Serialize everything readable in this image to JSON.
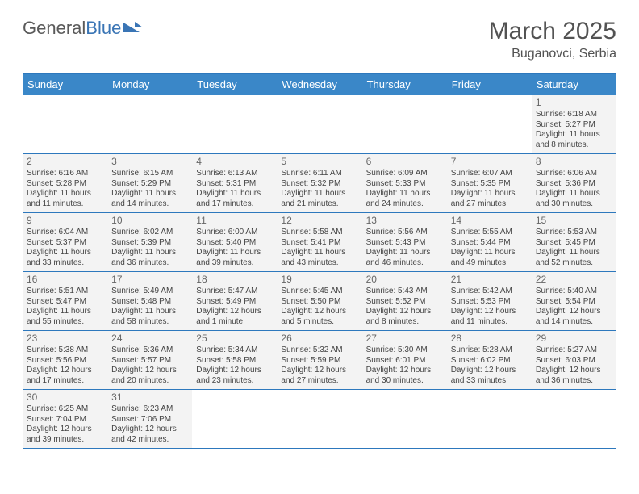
{
  "brand": {
    "part1": "General",
    "part2": "Blue"
  },
  "title": "March 2025",
  "location": "Buganovci, Serbia",
  "colors": {
    "headerBg": "#3a87c8",
    "headerText": "#ffffff",
    "borderBlue": "#2d78bd",
    "cellBg": "#f3f3f3",
    "emptyBg": "#ffffff",
    "textGray": "#525252"
  },
  "dayNames": [
    "Sunday",
    "Monday",
    "Tuesday",
    "Wednesday",
    "Thursday",
    "Friday",
    "Saturday"
  ],
  "weeks": [
    [
      null,
      null,
      null,
      null,
      null,
      null,
      {
        "n": "1",
        "sr": "Sunrise: 6:18 AM",
        "ss": "Sunset: 5:27 PM",
        "dl": "Daylight: 11 hours and 8 minutes."
      }
    ],
    [
      {
        "n": "2",
        "sr": "Sunrise: 6:16 AM",
        "ss": "Sunset: 5:28 PM",
        "dl": "Daylight: 11 hours and 11 minutes."
      },
      {
        "n": "3",
        "sr": "Sunrise: 6:15 AM",
        "ss": "Sunset: 5:29 PM",
        "dl": "Daylight: 11 hours and 14 minutes."
      },
      {
        "n": "4",
        "sr": "Sunrise: 6:13 AM",
        "ss": "Sunset: 5:31 PM",
        "dl": "Daylight: 11 hours and 17 minutes."
      },
      {
        "n": "5",
        "sr": "Sunrise: 6:11 AM",
        "ss": "Sunset: 5:32 PM",
        "dl": "Daylight: 11 hours and 21 minutes."
      },
      {
        "n": "6",
        "sr": "Sunrise: 6:09 AM",
        "ss": "Sunset: 5:33 PM",
        "dl": "Daylight: 11 hours and 24 minutes."
      },
      {
        "n": "7",
        "sr": "Sunrise: 6:07 AM",
        "ss": "Sunset: 5:35 PM",
        "dl": "Daylight: 11 hours and 27 minutes."
      },
      {
        "n": "8",
        "sr": "Sunrise: 6:06 AM",
        "ss": "Sunset: 5:36 PM",
        "dl": "Daylight: 11 hours and 30 minutes."
      }
    ],
    [
      {
        "n": "9",
        "sr": "Sunrise: 6:04 AM",
        "ss": "Sunset: 5:37 PM",
        "dl": "Daylight: 11 hours and 33 minutes."
      },
      {
        "n": "10",
        "sr": "Sunrise: 6:02 AM",
        "ss": "Sunset: 5:39 PM",
        "dl": "Daylight: 11 hours and 36 minutes."
      },
      {
        "n": "11",
        "sr": "Sunrise: 6:00 AM",
        "ss": "Sunset: 5:40 PM",
        "dl": "Daylight: 11 hours and 39 minutes."
      },
      {
        "n": "12",
        "sr": "Sunrise: 5:58 AM",
        "ss": "Sunset: 5:41 PM",
        "dl": "Daylight: 11 hours and 43 minutes."
      },
      {
        "n": "13",
        "sr": "Sunrise: 5:56 AM",
        "ss": "Sunset: 5:43 PM",
        "dl": "Daylight: 11 hours and 46 minutes."
      },
      {
        "n": "14",
        "sr": "Sunrise: 5:55 AM",
        "ss": "Sunset: 5:44 PM",
        "dl": "Daylight: 11 hours and 49 minutes."
      },
      {
        "n": "15",
        "sr": "Sunrise: 5:53 AM",
        "ss": "Sunset: 5:45 PM",
        "dl": "Daylight: 11 hours and 52 minutes."
      }
    ],
    [
      {
        "n": "16",
        "sr": "Sunrise: 5:51 AM",
        "ss": "Sunset: 5:47 PM",
        "dl": "Daylight: 11 hours and 55 minutes."
      },
      {
        "n": "17",
        "sr": "Sunrise: 5:49 AM",
        "ss": "Sunset: 5:48 PM",
        "dl": "Daylight: 11 hours and 58 minutes."
      },
      {
        "n": "18",
        "sr": "Sunrise: 5:47 AM",
        "ss": "Sunset: 5:49 PM",
        "dl": "Daylight: 12 hours and 1 minute."
      },
      {
        "n": "19",
        "sr": "Sunrise: 5:45 AM",
        "ss": "Sunset: 5:50 PM",
        "dl": "Daylight: 12 hours and 5 minutes."
      },
      {
        "n": "20",
        "sr": "Sunrise: 5:43 AM",
        "ss": "Sunset: 5:52 PM",
        "dl": "Daylight: 12 hours and 8 minutes."
      },
      {
        "n": "21",
        "sr": "Sunrise: 5:42 AM",
        "ss": "Sunset: 5:53 PM",
        "dl": "Daylight: 12 hours and 11 minutes."
      },
      {
        "n": "22",
        "sr": "Sunrise: 5:40 AM",
        "ss": "Sunset: 5:54 PM",
        "dl": "Daylight: 12 hours and 14 minutes."
      }
    ],
    [
      {
        "n": "23",
        "sr": "Sunrise: 5:38 AM",
        "ss": "Sunset: 5:56 PM",
        "dl": "Daylight: 12 hours and 17 minutes."
      },
      {
        "n": "24",
        "sr": "Sunrise: 5:36 AM",
        "ss": "Sunset: 5:57 PM",
        "dl": "Daylight: 12 hours and 20 minutes."
      },
      {
        "n": "25",
        "sr": "Sunrise: 5:34 AM",
        "ss": "Sunset: 5:58 PM",
        "dl": "Daylight: 12 hours and 23 minutes."
      },
      {
        "n": "26",
        "sr": "Sunrise: 5:32 AM",
        "ss": "Sunset: 5:59 PM",
        "dl": "Daylight: 12 hours and 27 minutes."
      },
      {
        "n": "27",
        "sr": "Sunrise: 5:30 AM",
        "ss": "Sunset: 6:01 PM",
        "dl": "Daylight: 12 hours and 30 minutes."
      },
      {
        "n": "28",
        "sr": "Sunrise: 5:28 AM",
        "ss": "Sunset: 6:02 PM",
        "dl": "Daylight: 12 hours and 33 minutes."
      },
      {
        "n": "29",
        "sr": "Sunrise: 5:27 AM",
        "ss": "Sunset: 6:03 PM",
        "dl": "Daylight: 12 hours and 36 minutes."
      }
    ],
    [
      {
        "n": "30",
        "sr": "Sunrise: 6:25 AM",
        "ss": "Sunset: 7:04 PM",
        "dl": "Daylight: 12 hours and 39 minutes."
      },
      {
        "n": "31",
        "sr": "Sunrise: 6:23 AM",
        "ss": "Sunset: 7:06 PM",
        "dl": "Daylight: 12 hours and 42 minutes."
      },
      null,
      null,
      null,
      null,
      null
    ]
  ]
}
